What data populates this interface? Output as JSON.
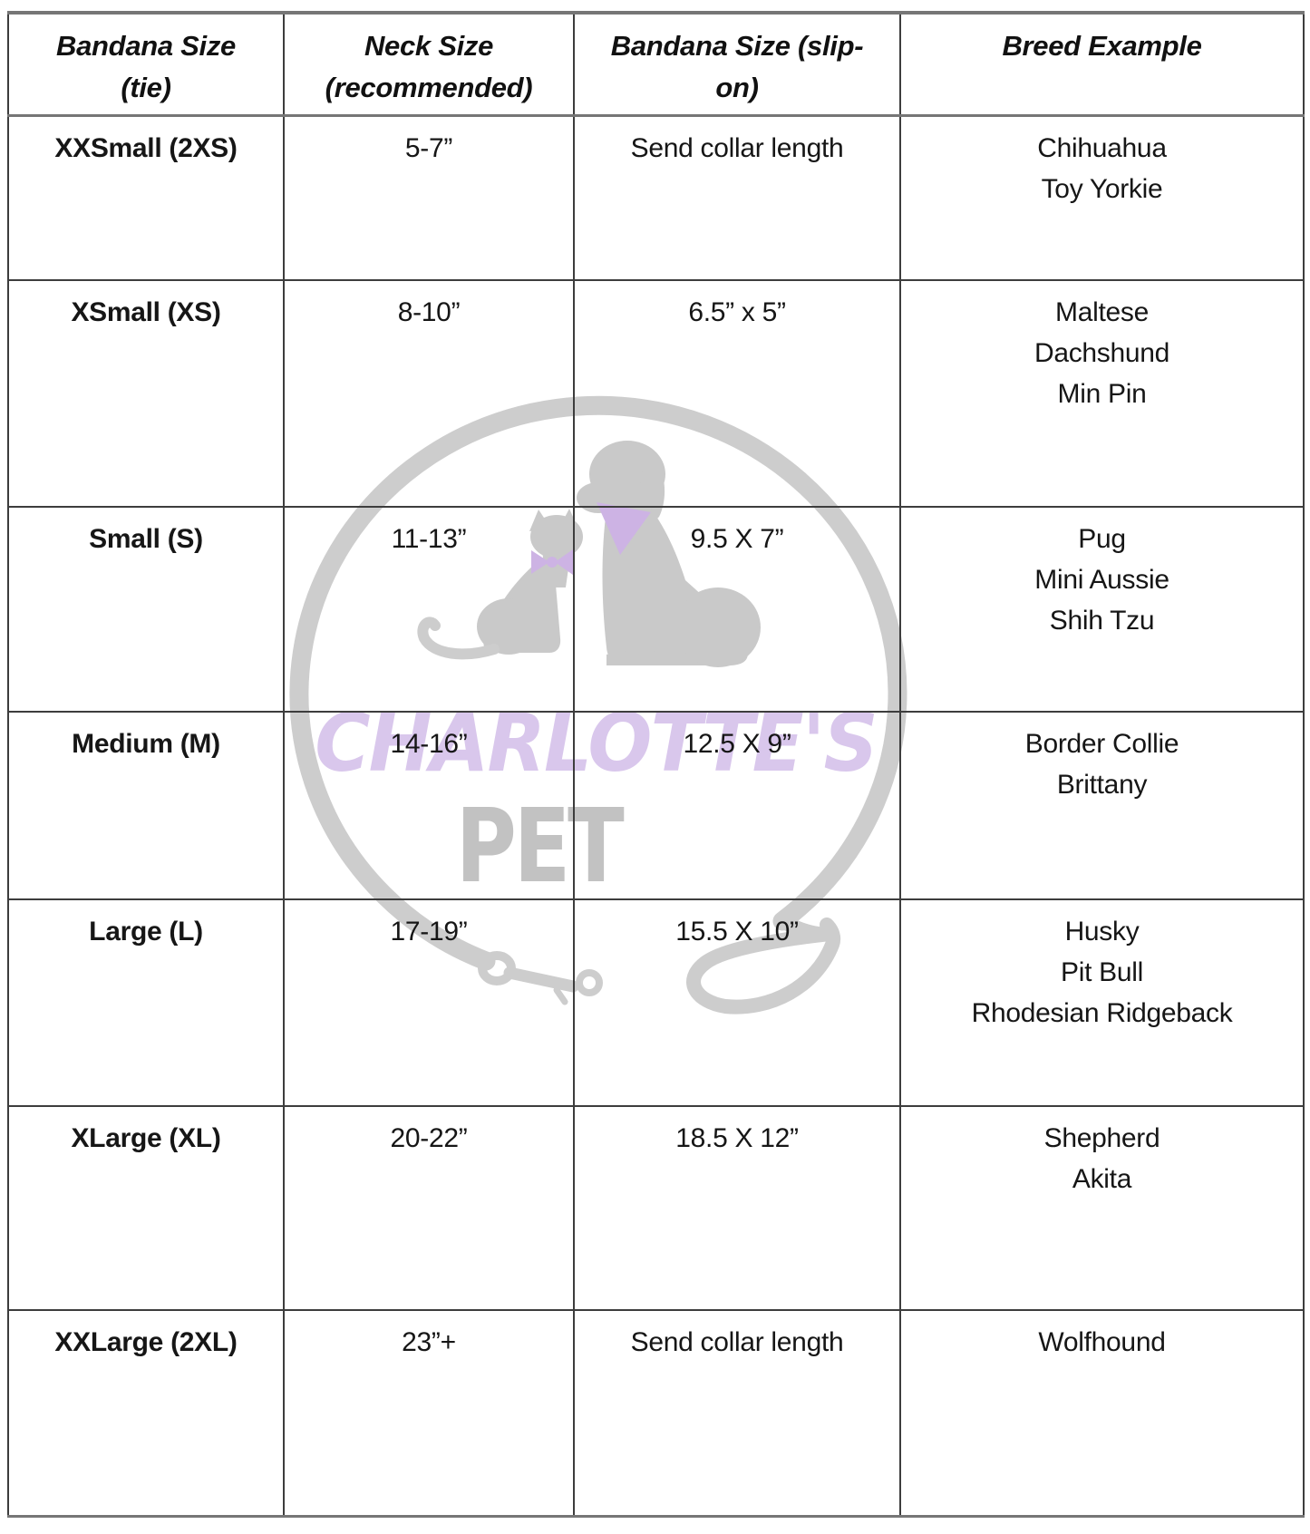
{
  "watermark": {
    "brand_line1": "CHARLOTTE'S",
    "brand_line2": "PET",
    "icons": {
      "leash": "leash-circle-icon",
      "cat": "cat-silhouette-icon",
      "dog": "dog-silhouette-icon"
    },
    "colors": {
      "brand_purple": "#d9c7ec",
      "bandana_purple": "#cdb3e4",
      "logo_gray": "#c9c9c9"
    }
  },
  "table": {
    "headers": [
      "Bandana Size\n(tie)",
      "Neck Size\n(recommended)",
      "Bandana Size (slip-\non)",
      "Breed Example"
    ],
    "rows": [
      {
        "size": "XXSmall (2XS)",
        "neck": "5-7”",
        "slip_on": "Send collar length",
        "breeds": [
          "Chihuahua",
          "Toy Yorkie"
        ]
      },
      {
        "size": "XSmall (XS)",
        "neck": "8-10”",
        "slip_on": "6.5” x 5”",
        "breeds": [
          "Maltese",
          "Dachshund",
          "Min Pin"
        ]
      },
      {
        "size": "Small (S)",
        "neck": "11-13”",
        "slip_on": "9.5 X 7”",
        "breeds": [
          "Pug",
          "Mini Aussie",
          "Shih Tzu"
        ]
      },
      {
        "size": "Medium (M)",
        "neck": "14-16”",
        "slip_on": "12.5 X 9”",
        "breeds": [
          "Border Collie",
          "Brittany"
        ]
      },
      {
        "size": "Large (L)",
        "neck": "17-19”",
        "slip_on": "15.5 X 10”",
        "breeds": [
          "Husky",
          "Pit Bull",
          "Rhodesian Ridgeback"
        ]
      },
      {
        "size": "XLarge (XL)",
        "neck": "20-22”",
        "slip_on": "18.5 X 12”",
        "breeds": [
          "Shepherd",
          "Akita"
        ]
      },
      {
        "size": "XXLarge (2XL)",
        "neck": "23”+",
        "slip_on": "Send collar length",
        "breeds": [
          "Wolfhound"
        ]
      }
    ]
  }
}
